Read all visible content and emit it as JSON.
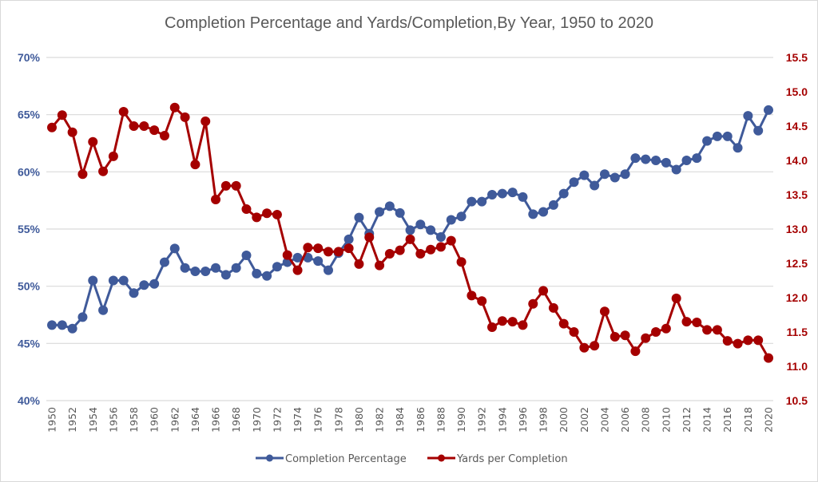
{
  "chart_data": {
    "type": "line",
    "title": "Completion  Percentage and Yards/Completion,By  Year, 1950 to 2020",
    "xlabel": "",
    "ylabel_left": "",
    "ylabel_right": "",
    "x": [
      1950,
      1951,
      1952,
      1953,
      1954,
      1955,
      1956,
      1957,
      1958,
      1959,
      1960,
      1961,
      1962,
      1963,
      1964,
      1965,
      1966,
      1967,
      1968,
      1969,
      1970,
      1971,
      1972,
      1973,
      1974,
      1975,
      1976,
      1977,
      1978,
      1979,
      1980,
      1981,
      1982,
      1983,
      1984,
      1985,
      1986,
      1987,
      1988,
      1989,
      1990,
      1991,
      1992,
      1993,
      1994,
      1995,
      1996,
      1997,
      1998,
      1999,
      2000,
      2001,
      2002,
      2003,
      2004,
      2005,
      2006,
      2007,
      2008,
      2009,
      2010,
      2011,
      2012,
      2013,
      2014,
      2015,
      2016,
      2017,
      2018,
      2019,
      2020
    ],
    "x_tick_labels": [
      "1950",
      "1952",
      "1954",
      "1956",
      "1958",
      "1960",
      "1962",
      "1964",
      "1966",
      "1968",
      "1970",
      "1972",
      "1974",
      "1976",
      "1978",
      "1980",
      "1982",
      "1984",
      "1986",
      "1988",
      "1990",
      "1992",
      "1994",
      "1996",
      "1998",
      "2000",
      "2002",
      "2004",
      "2006",
      "2008",
      "2010",
      "2012",
      "2014",
      "2016",
      "2018",
      "2020"
    ],
    "y_left": {
      "range": [
        40,
        70
      ],
      "ticks": [
        "40%",
        "45%",
        "50%",
        "55%",
        "60%",
        "65%",
        "70%"
      ],
      "tick_values": [
        40,
        45,
        50,
        55,
        60,
        65,
        70
      ],
      "color": "#3f5a9a"
    },
    "y_right": {
      "range": [
        10.5,
        15.5
      ],
      "ticks": [
        "10.5",
        "11.0",
        "11.5",
        "12.0",
        "12.5",
        "13.0",
        "13.5",
        "14.0",
        "14.5",
        "15.0",
        "15.5"
      ],
      "tick_values": [
        10.5,
        11.0,
        11.5,
        12.0,
        12.5,
        13.0,
        13.5,
        14.0,
        14.5,
        15.0,
        15.5
      ],
      "color": "#a50000"
    },
    "grid": true,
    "legend_position": "bottom",
    "series": [
      {
        "name": "Completion Percentage",
        "axis": "left",
        "unit": "%",
        "color": "#3f5a9a",
        "values": [
          46.6,
          46.6,
          46.3,
          47.3,
          50.5,
          47.9,
          50.5,
          50.5,
          49.4,
          50.1,
          50.2,
          52.1,
          53.3,
          51.6,
          51.3,
          51.3,
          51.6,
          51.0,
          51.6,
          52.7,
          51.1,
          50.9,
          51.7,
          52.1,
          52.5,
          52.5,
          52.2,
          51.4,
          52.9,
          54.1,
          56.0,
          54.6,
          56.5,
          57.0,
          56.4,
          54.9,
          55.4,
          54.9,
          54.3,
          55.8,
          56.1,
          57.4,
          57.4,
          58.0,
          58.1,
          58.2,
          57.8,
          56.3,
          56.5,
          57.1,
          58.1,
          59.1,
          59.7,
          58.8,
          59.8,
          59.5,
          59.8,
          61.2,
          61.1,
          61.0,
          60.8,
          60.2,
          61.0,
          61.2,
          62.7,
          63.1,
          63.1,
          62.1,
          64.9,
          63.6,
          65.4
        ]
      },
      {
        "name": "Yards per Completion",
        "axis": "right",
        "unit": "yards",
        "color": "#a50000",
        "values": [
          14.48,
          14.66,
          14.41,
          13.8,
          14.27,
          13.84,
          14.06,
          14.71,
          14.5,
          14.5,
          14.44,
          14.36,
          14.77,
          14.63,
          13.94,
          14.57,
          13.43,
          13.63,
          13.63,
          13.29,
          13.17,
          13.23,
          13.21,
          12.62,
          12.4,
          12.73,
          12.72,
          12.67,
          12.67,
          12.72,
          12.49,
          12.88,
          12.47,
          12.64,
          12.69,
          12.85,
          12.64,
          12.7,
          12.74,
          12.83,
          12.52,
          12.03,
          11.95,
          11.57,
          11.66,
          11.65,
          11.6,
          11.91,
          12.1,
          11.85,
          11.62,
          11.5,
          11.27,
          11.3,
          11.8,
          11.43,
          11.45,
          11.22,
          11.41,
          11.5,
          11.55,
          11.99,
          11.65,
          11.64,
          11.53,
          11.53,
          11.37,
          11.33,
          11.38,
          11.38,
          11.12
        ]
      }
    ]
  }
}
